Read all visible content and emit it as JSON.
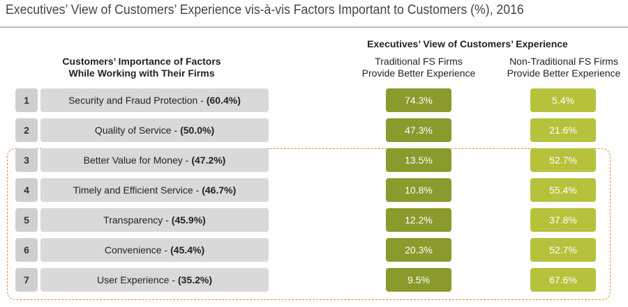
{
  "title": "Executives’ View of Customers’ Experience vis-à-vis Factors Important to Customers (%), 2016",
  "headers": {
    "executives_view": "Executives’ View of Customers’ Experience",
    "customers_importance_line1": "Customers’ Importance of Factors",
    "customers_importance_line2": "While Working with Their Firms",
    "traditional_line1": "Traditional FS Firms",
    "traditional_line2": "Provide Better Experience",
    "non_traditional_line1": "Non-Traditional FS Firms",
    "non_traditional_line2": "Provide Better Experience"
  },
  "colors": {
    "traditional": "#8a9a2c",
    "non_traditional": "#b6c23c",
    "highlight_border": "#e08a3c"
  },
  "chart_data": {
    "type": "table",
    "columns": [
      "Customers’ Importance of Factors While Working with Their Firms",
      "Traditional FS Firms Provide Better Experience",
      "Non-Traditional FS Firms Provide Better Experience"
    ],
    "rows": [
      {
        "rank": "1",
        "factor": "Security and Fraud Protection -",
        "importance": "(60.4%)",
        "traditional": "74.3%",
        "non_traditional": "5.4%"
      },
      {
        "rank": "2",
        "factor": "Quality of Service -",
        "importance": "(50.0%)",
        "traditional": "47.3%",
        "non_traditional": "21.6%"
      },
      {
        "rank": "3",
        "factor": "Better Value for Money -",
        "importance": "(47.2%)",
        "traditional": "13.5%",
        "non_traditional": "52.7%"
      },
      {
        "rank": "4",
        "factor": "Timely and Efficient Service -",
        "importance": "(46.7%)",
        "traditional": "10.8%",
        "non_traditional": "55.4%"
      },
      {
        "rank": "5",
        "factor": "Transparency -",
        "importance": "(45.9%)",
        "traditional": "12.2%",
        "non_traditional": "37.8%"
      },
      {
        "rank": "6",
        "factor": "Convenience -",
        "importance": "(45.4%)",
        "traditional": "20.3%",
        "non_traditional": "52.7%"
      },
      {
        "rank": "7",
        "factor": "User Experience -",
        "importance": "(35.2%)",
        "traditional": "9.5%",
        "non_traditional": "67.6%"
      }
    ],
    "highlighted_rows": [
      "3",
      "4",
      "5",
      "6",
      "7"
    ]
  }
}
